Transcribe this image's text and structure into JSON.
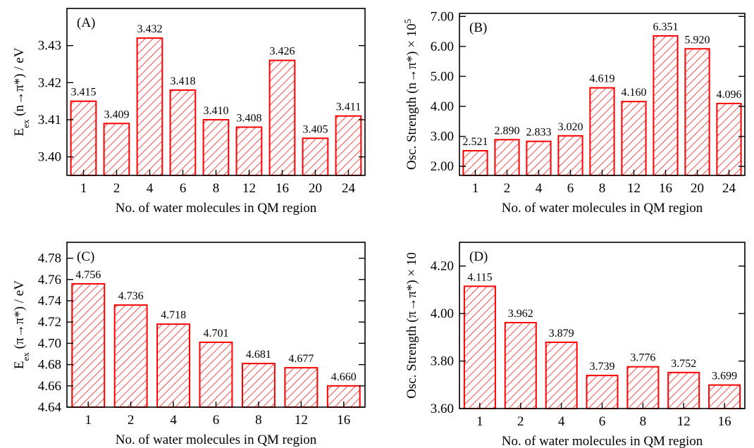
{
  "colors": {
    "bar_stroke": "#ff0000",
    "hatch": "#ff0000",
    "axis": "#000000"
  },
  "chart_data": [
    {
      "type": "bar",
      "panel_label": "(A)",
      "categories": [
        "1",
        "2",
        "4",
        "6",
        "8",
        "12",
        "16",
        "20",
        "24"
      ],
      "values": [
        3.415,
        3.409,
        3.432,
        3.418,
        3.41,
        3.408,
        3.426,
        3.405,
        3.411
      ],
      "value_labels": [
        "3.415",
        "3.409",
        "3.432",
        "3.418",
        "3.410",
        "3.408",
        "3.426",
        "3.405",
        "3.411"
      ],
      "xlabel": "No. of water molecules in QM region",
      "ylabel": {
        "main": "E",
        "sub": "ex",
        "rest": " (n→π*) / eV"
      },
      "ylim": [
        3.395,
        3.44
      ],
      "yticks": [
        3.4,
        3.41,
        3.42,
        3.43
      ],
      "ytick_labels": [
        "3.40",
        "3.41",
        "3.42",
        "3.43"
      ],
      "grid": false,
      "legend": "none"
    },
    {
      "type": "bar",
      "panel_label": "(B)",
      "categories": [
        "1",
        "2",
        "4",
        "6",
        "8",
        "12",
        "16",
        "20",
        "24"
      ],
      "values": [
        2.521,
        2.89,
        2.833,
        3.02,
        4.619,
        4.16,
        6.351,
        5.92,
        4.096
      ],
      "value_labels": [
        "2.521",
        "2.890",
        "2.833",
        "3.020",
        "4.619",
        "4.160",
        "6.351",
        "5.920",
        "4.096"
      ],
      "xlabel": "No. of water molecules in QM region",
      "ylabel": {
        "main": "Osc. Strength (n→π*) × 10",
        "sup": "5"
      },
      "ylim": [
        1.7,
        7.1
      ],
      "yticks": [
        2.0,
        3.0,
        4.0,
        5.0,
        6.0,
        7.0
      ],
      "ytick_labels": [
        "2.00",
        "3.00",
        "4.00",
        "5.00",
        "6.00",
        "7.00"
      ],
      "grid": false,
      "legend": "none"
    },
    {
      "type": "bar",
      "panel_label": "(C)",
      "categories": [
        "1",
        "2",
        "4",
        "6",
        "8",
        "12",
        "16"
      ],
      "values": [
        4.756,
        4.736,
        4.718,
        4.701,
        4.681,
        4.677,
        4.66
      ],
      "value_labels": [
        "4.756",
        "4.736",
        "4.718",
        "4.701",
        "4.681",
        "4.677",
        "4.660"
      ],
      "xlabel": "No. of water molecules in QM region",
      "ylabel": {
        "main": "E",
        "sub": "ex",
        "rest": " (π→π*) / eV"
      },
      "ylim": [
        4.64,
        4.795
      ],
      "yticks": [
        4.64,
        4.66,
        4.68,
        4.7,
        4.72,
        4.74,
        4.76,
        4.78
      ],
      "ytick_labels": [
        "4.64",
        "4.66",
        "4.68",
        "4.70",
        "4.72",
        "4.74",
        "4.76",
        "4.78"
      ],
      "grid": false,
      "legend": "none"
    },
    {
      "type": "bar",
      "panel_label": "(D)",
      "categories": [
        "1",
        "2",
        "4",
        "6",
        "8",
        "12",
        "16"
      ],
      "values": [
        4.115,
        3.962,
        3.879,
        3.739,
        3.776,
        3.752,
        3.699
      ],
      "value_labels": [
        "4.115",
        "3.962",
        "3.879",
        "3.739",
        "3.776",
        "3.752",
        "3.699"
      ],
      "xlabel": "No. of water molecules in QM region",
      "ylabel": {
        "main": "Osc. Strength (π→π*) × 10",
        "sup": ""
      },
      "ylim": [
        3.6,
        4.3
      ],
      "yticks": [
        3.6,
        3.8,
        4.0,
        4.2
      ],
      "ytick_labels": [
        "3.60",
        "3.80",
        "4.00",
        "4.20"
      ],
      "grid": false,
      "legend": "none"
    }
  ]
}
